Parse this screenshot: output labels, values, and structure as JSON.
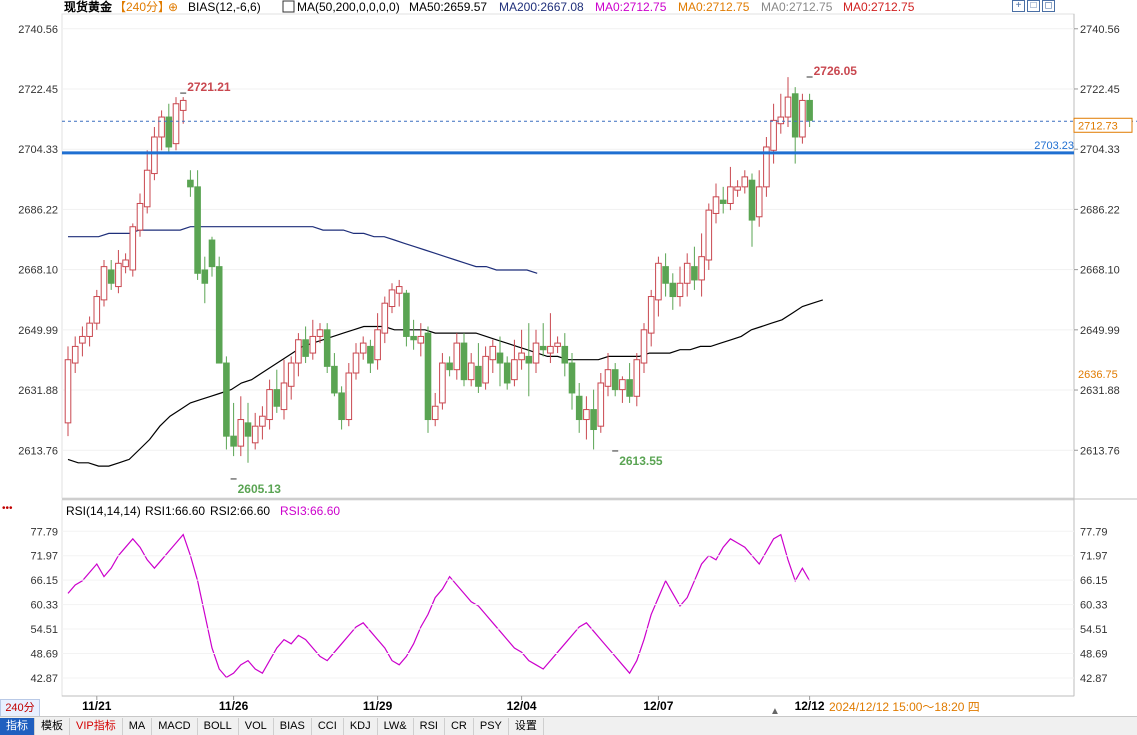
{
  "header": {
    "symbol": "现货黄金",
    "period": "【240分】",
    "bias_label": "BIAS(12,-6,6)",
    "ma_label": "MA(50,200,0,0,0,0)",
    "ma50": "MA50:2659.57",
    "ma200": "MA200:2667.08",
    "ma0_a": "MA0:2712.75",
    "ma0_b": "MA0:2712.75",
    "ma0_c": "MA0:2712.75",
    "ma0_d": "MA0:2712.75"
  },
  "toolbar_icons": [
    "grid-icon",
    "window-icon",
    "maximize-icon"
  ],
  "price_axis_labels": [
    "2740.56",
    "2722.45",
    "2704.33",
    "2686.22",
    "2668.10",
    "2649.99",
    "2631.88",
    "2613.76"
  ],
  "price_tags": {
    "current": "2712.73",
    "level": "2703.23",
    "low_marker": "2636.75"
  },
  "annotations": {
    "high1": "2721.21",
    "low1": "2605.13",
    "low2": "2613.55",
    "high2": "2726.05"
  },
  "rsi": {
    "header": "RSI(14,14,14)",
    "rsi1": "RSI1:66.60",
    "rsi2": "RSI2:66.60",
    "rsi3": "RSI3:66.60",
    "axis_labels": [
      "77.79",
      "71.97",
      "66.15",
      "60.33",
      "54.51",
      "48.69",
      "42.87"
    ]
  },
  "date_labels": [
    "11/21",
    "11/26",
    "11/29",
    "12/04",
    "12/07",
    "12/12"
  ],
  "time_range": "2024/12/12 15:00～18:20 四",
  "period_badge": "240分",
  "bottom_tabs": [
    "指标",
    "模板",
    "VIP指标",
    "MA",
    "MACD",
    "BOLL",
    "VOL",
    "BIAS",
    "CCI",
    "KDJ",
    "LW&",
    "RSI",
    "CR",
    "PSY",
    "设置"
  ],
  "colors": {
    "up": "#c9474f",
    "down": "#5aa453",
    "ma50": "#000000",
    "ma200": "#1f2f7a",
    "level_line": "#1f6fd1",
    "rsi_line": "#cc00cc",
    "current_price": "#e07b00"
  },
  "chart_data": {
    "type": "candlestick",
    "ylim": [
      2600,
      2745
    ],
    "candles": [
      [
        2622,
        2641,
        2618,
        2645
      ],
      [
        2640,
        2645,
        2637,
        2648
      ],
      [
        2646,
        2648,
        2642,
        2651
      ],
      [
        2648,
        2652,
        2645,
        2654
      ],
      [
        2652,
        2660,
        2650,
        2662
      ],
      [
        2659,
        2669,
        2657,
        2671
      ],
      [
        2668,
        2664,
        2662,
        2671
      ],
      [
        2663,
        2670,
        2661,
        2674
      ],
      [
        2669,
        2671,
        2667,
        2673
      ],
      [
        2668,
        2681,
        2666,
        2682
      ],
      [
        2680,
        2688,
        2678,
        2691
      ],
      [
        2687,
        2698,
        2685,
        2704
      ],
      [
        2697,
        2708,
        2695,
        2711
      ],
      [
        2708,
        2714,
        2704,
        2716
      ],
      [
        2714,
        2705,
        2703,
        2718
      ],
      [
        2706,
        2718,
        2704,
        2720
      ],
      [
        2716,
        2719,
        2712,
        2720
      ],
      [
        2695,
        2693,
        2690,
        2698
      ],
      [
        2693,
        2667,
        2665,
        2698
      ],
      [
        2668,
        2664,
        2658,
        2672
      ],
      [
        2677,
        2669,
        2666,
        2678
      ],
      [
        2669,
        2640,
        2640,
        2672
      ],
      [
        2640,
        2618,
        2614,
        2642
      ],
      [
        2618,
        2615,
        2612,
        2628
      ],
      [
        2615,
        2623,
        2612,
        2630
      ],
      [
        2622,
        2618,
        2610,
        2628
      ],
      [
        2616,
        2621,
        2614,
        2625
      ],
      [
        2621,
        2624,
        2617,
        2627
      ],
      [
        2623,
        2632,
        2620,
        2635
      ],
      [
        2632,
        2627,
        2625,
        2638
      ],
      [
        2626,
        2634,
        2623,
        2641
      ],
      [
        2633,
        2640,
        2629,
        2642
      ],
      [
        2640,
        2647,
        2636,
        2649
      ],
      [
        2647,
        2642,
        2640,
        2651
      ],
      [
        2643,
        2648,
        2641,
        2653
      ],
      [
        2648,
        2650,
        2646,
        2652
      ],
      [
        2650,
        2639,
        2637,
        2652
      ],
      [
        2639,
        2631,
        2630,
        2643
      ],
      [
        2631,
        2623,
        2620,
        2633
      ],
      [
        2623,
        2637,
        2621,
        2640
      ],
      [
        2637,
        2643,
        2635,
        2646
      ],
      [
        2643,
        2646,
        2641,
        2648
      ],
      [
        2645,
        2640,
        2637,
        2647
      ],
      [
        2641,
        2650,
        2638,
        2655
      ],
      [
        2649,
        2658,
        2646,
        2660
      ],
      [
        2657,
        2662,
        2655,
        2664
      ],
      [
        2661,
        2663,
        2657,
        2665
      ],
      [
        2661,
        2648,
        2645,
        2662
      ],
      [
        2648,
        2647,
        2644,
        2653
      ],
      [
        2646,
        2648,
        2642,
        2652
      ],
      [
        2649,
        2623,
        2619,
        2651
      ],
      [
        2623,
        2627,
        2621,
        2631
      ],
      [
        2628,
        2640,
        2626,
        2643
      ],
      [
        2640,
        2638,
        2636,
        2642
      ],
      [
        2638,
        2646,
        2635,
        2649
      ],
      [
        2646,
        2635,
        2633,
        2649
      ],
      [
        2635,
        2640,
        2633,
        2643
      ],
      [
        2639,
        2633,
        2631,
        2646
      ],
      [
        2634,
        2642,
        2632,
        2645
      ],
      [
        2641,
        2645,
        2637,
        2647
      ],
      [
        2643,
        2640,
        2633,
        2648
      ],
      [
        2640,
        2634,
        2632,
        2642
      ],
      [
        2635,
        2641,
        2633,
        2647
      ],
      [
        2641,
        2643,
        2638,
        2650
      ],
      [
        2642,
        2640,
        2630,
        2652
      ],
      [
        2640,
        2646,
        2637,
        2650
      ],
      [
        2645,
        2644,
        2642,
        2652
      ],
      [
        2643,
        2645,
        2640,
        2655
      ],
      [
        2645,
        2646,
        2643,
        2648
      ],
      [
        2645,
        2640,
        2636,
        2649
      ],
      [
        2640,
        2631,
        2626,
        2643
      ],
      [
        2630,
        2623,
        2619,
        2634
      ],
      [
        2623,
        2626,
        2617,
        2630
      ],
      [
        2626,
        2620,
        2614,
        2632
      ],
      [
        2621,
        2634,
        2619,
        2637
      ],
      [
        2633,
        2638,
        2630,
        2643
      ],
      [
        2638,
        2632,
        2630,
        2640
      ],
      [
        2632,
        2635,
        2628,
        2636
      ],
      [
        2635,
        2630,
        2628,
        2640
      ],
      [
        2630,
        2641,
        2627,
        2643
      ],
      [
        2640,
        2650,
        2637,
        2652
      ],
      [
        2649,
        2660,
        2645,
        2662
      ],
      [
        2659,
        2670,
        2654,
        2672
      ],
      [
        2669,
        2664,
        2660,
        2673
      ],
      [
        2664,
        2660,
        2656,
        2667
      ],
      [
        2660,
        2664,
        2657,
        2669
      ],
      [
        2664,
        2670,
        2660,
        2673
      ],
      [
        2669,
        2665,
        2662,
        2675
      ],
      [
        2665,
        2672,
        2660,
        2679
      ],
      [
        2671,
        2686,
        2668,
        2688
      ],
      [
        2685,
        2690,
        2682,
        2694
      ],
      [
        2689,
        2688,
        2685,
        2693
      ],
      [
        2688,
        2693,
        2686,
        2699
      ],
      [
        2692,
        2693,
        2690,
        2695
      ],
      [
        2693,
        2696,
        2691,
        2698
      ],
      [
        2695,
        2683,
        2675,
        2697
      ],
      [
        2684,
        2693,
        2681,
        2698
      ],
      [
        2693,
        2705,
        2690,
        2708
      ],
      [
        2704,
        2713,
        2700,
        2718
      ],
      [
        2712,
        2714,
        2709,
        2721
      ],
      [
        2714,
        2720,
        2711,
        2726
      ],
      [
        2721,
        2708,
        2700,
        2723
      ],
      [
        2708,
        2719,
        2706,
        2721
      ],
      [
        2719,
        2713,
        2711,
        2721
      ]
    ],
    "ma50": [
      2611,
      2610,
      2610,
      2609,
      2609,
      2610,
      2611,
      2614,
      2617,
      2621,
      2624,
      2626,
      2628,
      2629,
      2630,
      2631,
      2632,
      2634,
      2635,
      2637,
      2639,
      2641,
      2643,
      2645,
      2646,
      2647,
      2648,
      2649,
      2650,
      2651,
      2651,
      2651,
      2650,
      2650,
      2650,
      2650,
      2649,
      2649,
      2649,
      2649,
      2649,
      2648,
      2647,
      2646,
      2645,
      2644,
      2643,
      2642,
      2642,
      2641,
      2641,
      2641,
      2641,
      2642,
      2642,
      2642,
      2642,
      2643,
      2643,
      2643,
      2644,
      2644,
      2645,
      2645,
      2646,
      2647,
      2648,
      2650,
      2651,
      2652,
      2653,
      2655,
      2657,
      2658,
      2659
    ],
    "ma200": [
      2678,
      2678,
      2678,
      2678,
      2679,
      2679,
      2679,
      2680,
      2680,
      2680,
      2680,
      2680,
      2681,
      2681,
      2681,
      2681,
      2681,
      2681,
      2681,
      2681,
      2681,
      2681,
      2681,
      2681,
      2681,
      2680,
      2680,
      2680,
      2679,
      2679,
      2678,
      2678,
      2677,
      2676,
      2675,
      2674,
      2673,
      2672,
      2671,
      2670,
      2669,
      2669,
      2668,
      2668,
      2668,
      2668,
      2667
    ],
    "rsi": [
      63,
      65,
      66,
      68,
      70,
      67,
      69,
      72,
      74,
      76,
      74,
      71,
      69,
      71,
      73,
      75,
      77,
      72,
      66,
      58,
      50,
      45,
      43,
      44,
      46,
      47,
      45,
      44,
      47,
      50,
      52,
      51,
      53,
      52,
      50,
      48,
      47,
      49,
      51,
      53,
      55,
      56,
      54,
      52,
      50,
      47,
      46,
      48,
      51,
      55,
      58,
      62,
      64,
      67,
      65,
      63,
      61,
      60,
      58,
      56,
      54,
      52,
      50,
      49,
      47,
      46,
      45,
      47,
      49,
      51,
      53,
      55,
      56,
      54,
      52,
      50,
      48,
      46,
      44,
      47,
      52,
      58,
      62,
      66,
      63,
      60,
      62,
      66,
      70,
      72,
      71,
      74,
      76,
      75,
      74,
      72,
      70,
      73,
      76,
      77,
      71,
      66,
      69,
      66
    ],
    "rsi_range": [
      40,
      80
    ],
    "x_tick_labels": [
      "11/21",
      "11/26",
      "11/29",
      "12/04",
      "12/07",
      "12/12"
    ]
  }
}
